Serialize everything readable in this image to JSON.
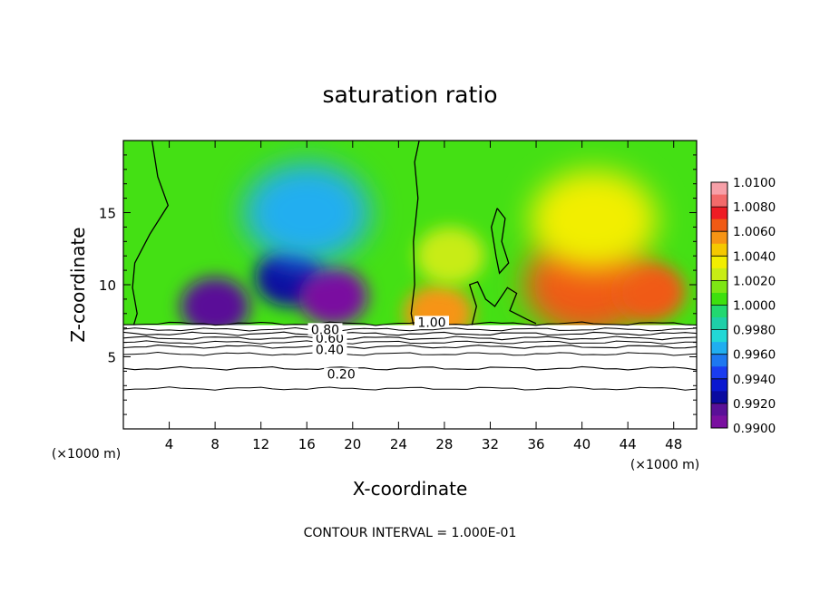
{
  "chart_data": {
    "type": "heatmap",
    "title": "saturation ratio",
    "xlabel": "X-coordinate",
    "ylabel": "Z-coordinate",
    "x_unit_left": "(×1000 m)",
    "x_unit_right": "(×1000 m)",
    "footer": "CONTOUR INTERVAL = 1.000E-01",
    "xlim": [
      0,
      50
    ],
    "ylim": [
      0,
      20
    ],
    "x_ticks": [
      4,
      8,
      12,
      16,
      20,
      24,
      28,
      32,
      36,
      40,
      44,
      48
    ],
    "y_ticks": [
      5,
      10,
      15
    ],
    "colorbar": {
      "levels": [
        "1.0100",
        "1.0080",
        "1.0060",
        "1.0040",
        "1.0020",
        "1.0000",
        "0.9980",
        "0.9960",
        "0.9940",
        "0.9920",
        "0.9900"
      ],
      "colors": [
        "#f7a0a8",
        "#f26a6a",
        "#ee1c24",
        "#f05a14",
        "#f79414",
        "#f5c800",
        "#f2ee00",
        "#c8ec14",
        "#7ee614",
        "#3ee00e",
        "#22d870",
        "#1ecfa8",
        "#22d8d6",
        "#20aef0",
        "#1e78f0",
        "#1a3cf0",
        "#0a18d0",
        "#0a0aa0",
        "#5a1098",
        "#7a10a0"
      ]
    },
    "contour_lines": [
      {
        "label": "0.20",
        "z": 4.2
      },
      {
        "label": "0.40",
        "z": 5.7
      },
      {
        "label": "0.60",
        "z": 6.3
      },
      {
        "label": "0.80",
        "z": 6.6
      },
      {
        "label": "1.00",
        "z": 7.3
      }
    ],
    "extra_contours_z": [
      2.8,
      5.2,
      6.0,
      6.9
    ],
    "cloud_base_z": 7.2,
    "field_regions": [
      {
        "name": "dry-left",
        "x": 14.5,
        "z": 10.5,
        "value": 0.9925
      },
      {
        "name": "dry-core",
        "x": 18.3,
        "z": 9.2,
        "value": 0.9905
      },
      {
        "name": "dry-mid",
        "x": 8.0,
        "z": 8.5,
        "value": 0.992
      },
      {
        "name": "dry-upper",
        "x": 16.0,
        "z": 15.0,
        "value": 0.9965
      },
      {
        "name": "moist-right",
        "x": 40.5,
        "z": 10.0,
        "value": 1.007
      },
      {
        "name": "moist-right-2",
        "x": 46.0,
        "z": 9.5,
        "value": 1.0065
      },
      {
        "name": "moist-upper",
        "x": 41.0,
        "z": 14.5,
        "value": 1.0035
      },
      {
        "name": "moist-spot",
        "x": 27.5,
        "z": 8.0,
        "value": 1.006
      },
      {
        "name": "moist-spot-2",
        "x": 28.5,
        "z": 12.0,
        "value": 1.0025
      }
    ]
  }
}
